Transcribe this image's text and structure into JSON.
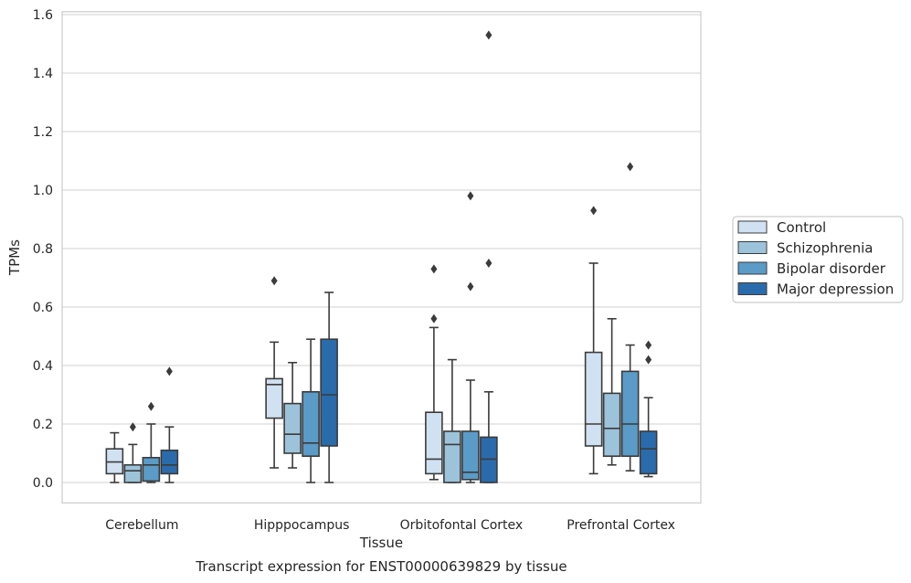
{
  "chart_data": {
    "type": "box",
    "title": "",
    "caption": "Transcript expression for ENST00000639829 by tissue",
    "xlabel": "Tissue",
    "ylabel": "TPMs",
    "ylim": [
      -0.07,
      1.61
    ],
    "yticks": [
      0.0,
      0.2,
      0.4,
      0.6,
      0.8,
      1.0,
      1.2,
      1.4,
      1.6
    ],
    "ytick_labels": [
      "0.0",
      "0.2",
      "0.4",
      "0.6",
      "0.8",
      "1.0",
      "1.2",
      "1.4",
      "1.6"
    ],
    "grid": true,
    "legend_position": "right",
    "categories": [
      "Cerebellum",
      "Hipppocampus",
      "Orbitofontal Cortex",
      "Prefrontal Cortex"
    ],
    "series": [
      {
        "name": "Control",
        "color": "#d0e1f2",
        "boxes": [
          {
            "q1": 0.03,
            "median": 0.07,
            "q3": 0.115,
            "whisker_low": 0.0,
            "whisker_high": 0.17,
            "outliers": []
          },
          {
            "q1": 0.22,
            "median": 0.335,
            "q3": 0.355,
            "whisker_low": 0.05,
            "whisker_high": 0.48,
            "outliers": [
              0.69
            ]
          },
          {
            "q1": 0.03,
            "median": 0.08,
            "q3": 0.24,
            "whisker_low": 0.01,
            "whisker_high": 0.53,
            "outliers": [
              0.56,
              0.73
            ]
          },
          {
            "q1": 0.125,
            "median": 0.2,
            "q3": 0.445,
            "whisker_low": 0.03,
            "whisker_high": 0.75,
            "outliers": [
              0.93
            ]
          }
        ]
      },
      {
        "name": "Schizophrenia",
        "color": "#9cc3da",
        "boxes": [
          {
            "q1": 0.0,
            "median": 0.04,
            "q3": 0.06,
            "whisker_low": 0.0,
            "whisker_high": 0.13,
            "outliers": [
              0.19
            ]
          },
          {
            "q1": 0.1,
            "median": 0.165,
            "q3": 0.27,
            "whisker_low": 0.05,
            "whisker_high": 0.41,
            "outliers": []
          },
          {
            "q1": 0.0,
            "median": 0.13,
            "q3": 0.175,
            "whisker_low": 0.0,
            "whisker_high": 0.42,
            "outliers": []
          },
          {
            "q1": 0.09,
            "median": 0.185,
            "q3": 0.305,
            "whisker_low": 0.06,
            "whisker_high": 0.56,
            "outliers": []
          }
        ]
      },
      {
        "name": "Bipolar disorder",
        "color": "#5a9bc8",
        "boxes": [
          {
            "q1": 0.005,
            "median": 0.06,
            "q3": 0.085,
            "whisker_low": 0.0,
            "whisker_high": 0.2,
            "outliers": [
              0.26
            ]
          },
          {
            "q1": 0.09,
            "median": 0.135,
            "q3": 0.31,
            "whisker_low": 0.0,
            "whisker_high": 0.49,
            "outliers": []
          },
          {
            "q1": 0.01,
            "median": 0.035,
            "q3": 0.175,
            "whisker_low": 0.0,
            "whisker_high": 0.35,
            "outliers": [
              0.67,
              0.98
            ]
          },
          {
            "q1": 0.09,
            "median": 0.2,
            "q3": 0.38,
            "whisker_low": 0.04,
            "whisker_high": 0.47,
            "outliers": [
              1.08
            ]
          }
        ]
      },
      {
        "name": "Major depression",
        "color": "#2a6bab",
        "boxes": [
          {
            "q1": 0.03,
            "median": 0.06,
            "q3": 0.11,
            "whisker_low": 0.0,
            "whisker_high": 0.19,
            "outliers": [
              0.38
            ]
          },
          {
            "q1": 0.125,
            "median": 0.3,
            "q3": 0.49,
            "whisker_low": 0.0,
            "whisker_high": 0.65,
            "outliers": []
          },
          {
            "q1": 0.0,
            "median": 0.08,
            "q3": 0.155,
            "whisker_low": 0.0,
            "whisker_high": 0.31,
            "outliers": [
              0.75,
              1.53
            ]
          },
          {
            "q1": 0.03,
            "median": 0.115,
            "q3": 0.175,
            "whisker_low": 0.02,
            "whisker_high": 0.29,
            "outliers": [
              0.42,
              0.47
            ]
          }
        ]
      }
    ]
  }
}
